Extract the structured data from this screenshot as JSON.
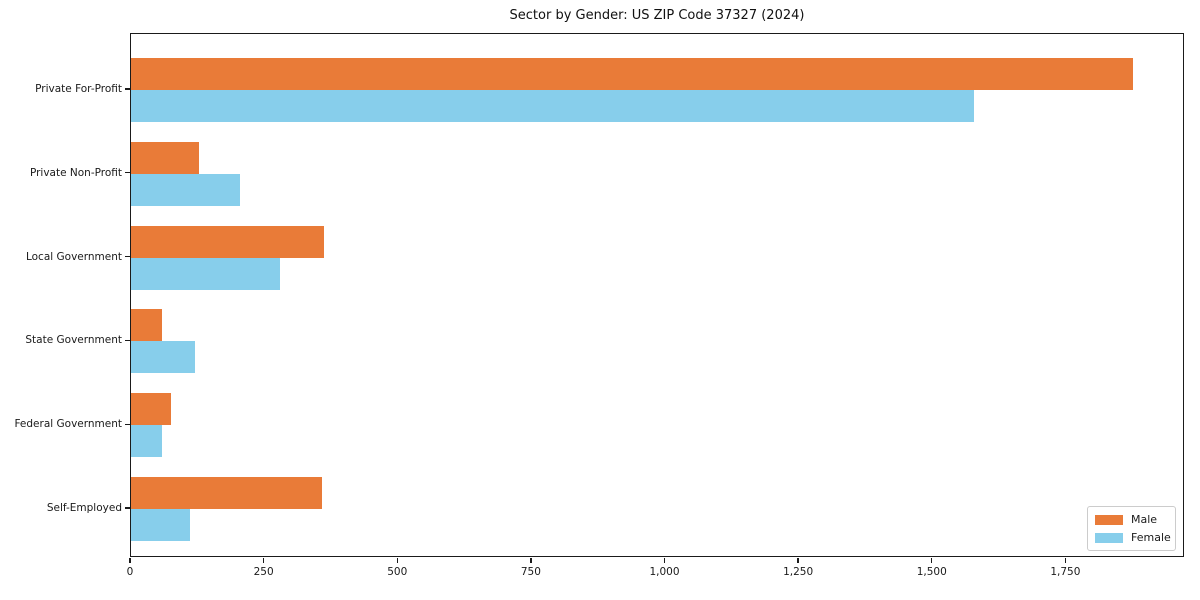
{
  "window": {
    "background": "#ffffff"
  },
  "chart_data": {
    "type": "bar",
    "orientation": "horizontal",
    "title": "Sector by Gender: US ZIP Code 37327 (2024)",
    "categories": [
      "Private For-Profit",
      "Private Non-Profit",
      "Local Government",
      "State Government",
      "Federal Government",
      "Self-Employed"
    ],
    "series": [
      {
        "name": "Male",
        "color": "#e97b38",
        "values": [
          1878,
          127,
          362,
          58,
          75,
          358
        ]
      },
      {
        "name": "Female",
        "color": "#87ceeb",
        "values": [
          1581,
          205,
          280,
          120,
          59,
          110
        ]
      }
    ],
    "xlabel": "",
    "ylabel": "",
    "xlim": [
      0,
      1972
    ],
    "xticks": [
      0,
      250,
      500,
      750,
      1000,
      1250,
      1500,
      1750
    ],
    "xtick_labels": [
      "0",
      "250",
      "500",
      "750",
      "1,000",
      "1,250",
      "1,500",
      "1,750"
    ],
    "grid": false,
    "legend": {
      "position": "lower right",
      "entries": [
        "Male",
        "Female"
      ]
    },
    "axis_color": "#1a1a1a"
  }
}
